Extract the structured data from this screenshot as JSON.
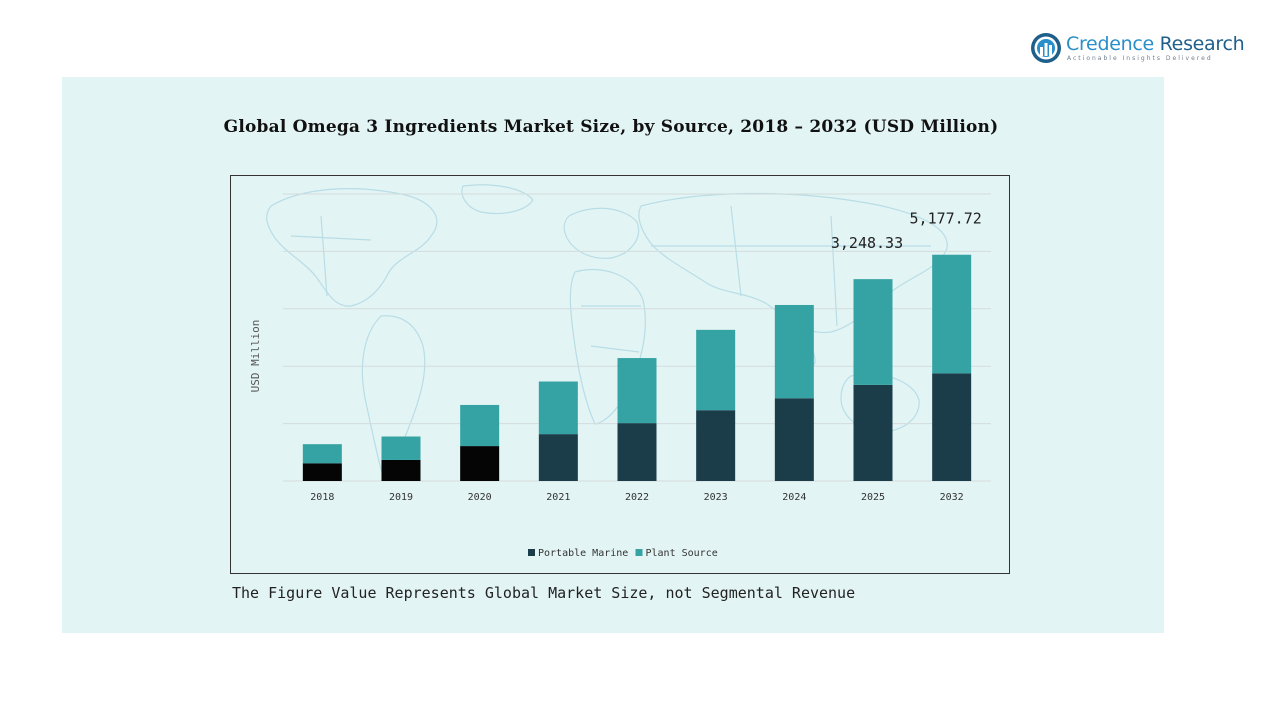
{
  "brand": {
    "name_first": "Credence",
    "name_second": " Research",
    "tagline": "Actionable Insights Delivered",
    "primary_color": "#2a8fc9"
  },
  "footnote": "The Figure Value Represents Global Market Size, not Segmental Revenue",
  "chart_data": {
    "type": "bar",
    "stacked": true,
    "title": "Global Omega 3 Ingredients Market Size, by Source, 2018 – 2032 (USD Million)",
    "ylabel": "USD Million",
    "xlabel": "",
    "categories": [
      "2018",
      "2019",
      "2020",
      "2021",
      "2022",
      "2023",
      "2024",
      "2025",
      "2032"
    ],
    "series": [
      {
        "name": "Portable Marine",
        "color": "#1b3d4a",
        "values": [
          370,
          440,
          730,
          980,
          1210,
          1480,
          1730,
          2010,
          2250
        ]
      },
      {
        "name": "Plant Source",
        "color": "#35a3a3",
        "values": [
          400,
          490,
          860,
          1100,
          1360,
          1680,
          1950,
          2210,
          2480
        ]
      }
    ],
    "first_segment_override": {
      "categories": [
        "2018",
        "2019",
        "2020"
      ],
      "color": "#050505"
    },
    "totals_labels": [
      {
        "category": "2025",
        "text": "3,248.33"
      },
      {
        "category": "2032",
        "text": "5,177.72"
      }
    ],
    "ylim": [
      0,
      6000
    ],
    "y_gridlines": [
      0,
      1200,
      2400,
      3600,
      4800,
      6000
    ],
    "grid": true,
    "legend_position": "bottom-center",
    "background": "world-map-watermark"
  }
}
